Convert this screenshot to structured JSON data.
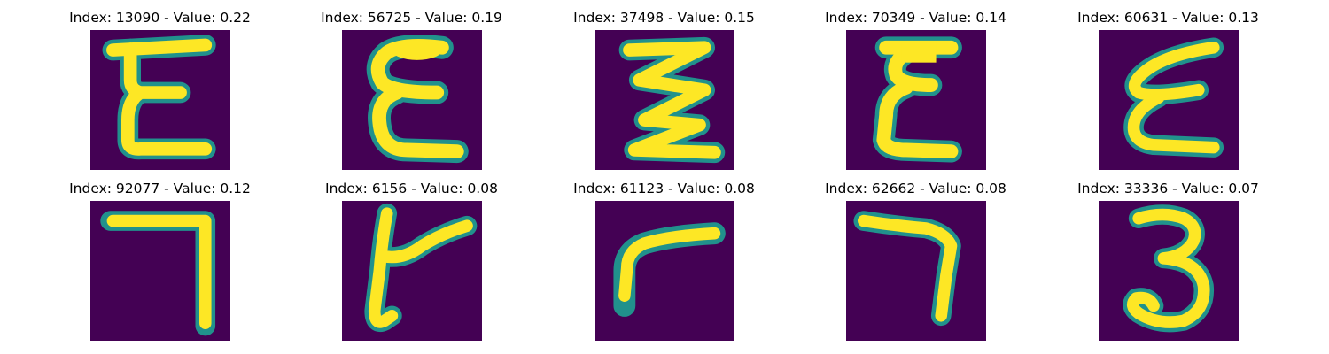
{
  "figure": {
    "background": "#ffffff",
    "colormap": "viridis",
    "colors": {
      "background_pixel": "#440154",
      "stroke_edge": "#21918c",
      "stroke_mid": "#5ec962",
      "stroke_core": "#fde725"
    },
    "panels": [
      {
        "title": "Index: 13090 - Value: 0.22",
        "index": 13090,
        "value": 0.22,
        "glyph": "epsilon"
      },
      {
        "title": "Index: 56725 - Value: 0.19",
        "index": 56725,
        "value": 0.19,
        "glyph": "epsilon"
      },
      {
        "title": "Index: 37498 - Value: 0.15",
        "index": 37498,
        "value": 0.15,
        "glyph": "zigzag"
      },
      {
        "title": "Index: 70349 - Value: 0.14",
        "index": 70349,
        "value": 0.14,
        "glyph": "epsilon"
      },
      {
        "title": "Index: 60631 - Value: 0.13",
        "index": 60631,
        "value": 0.13,
        "glyph": "epsilon-slanted"
      },
      {
        "title": "Index: 92077 - Value: 0.12",
        "index": 92077,
        "value": 0.12,
        "glyph": "seven"
      },
      {
        "title": "Index: 6156 - Value: 0.08",
        "index": 6156,
        "value": 0.08,
        "glyph": "y-shape"
      },
      {
        "title": "Index: 61123 - Value: 0.08",
        "index": 61123,
        "value": 0.08,
        "glyph": "gamma-curve"
      },
      {
        "title": "Index: 62662 - Value: 0.08",
        "index": 62662,
        "value": 0.08,
        "glyph": "seven"
      },
      {
        "title": "Index: 33336 - Value: 0.07",
        "index": 33336,
        "value": 0.07,
        "glyph": "three"
      }
    ]
  }
}
